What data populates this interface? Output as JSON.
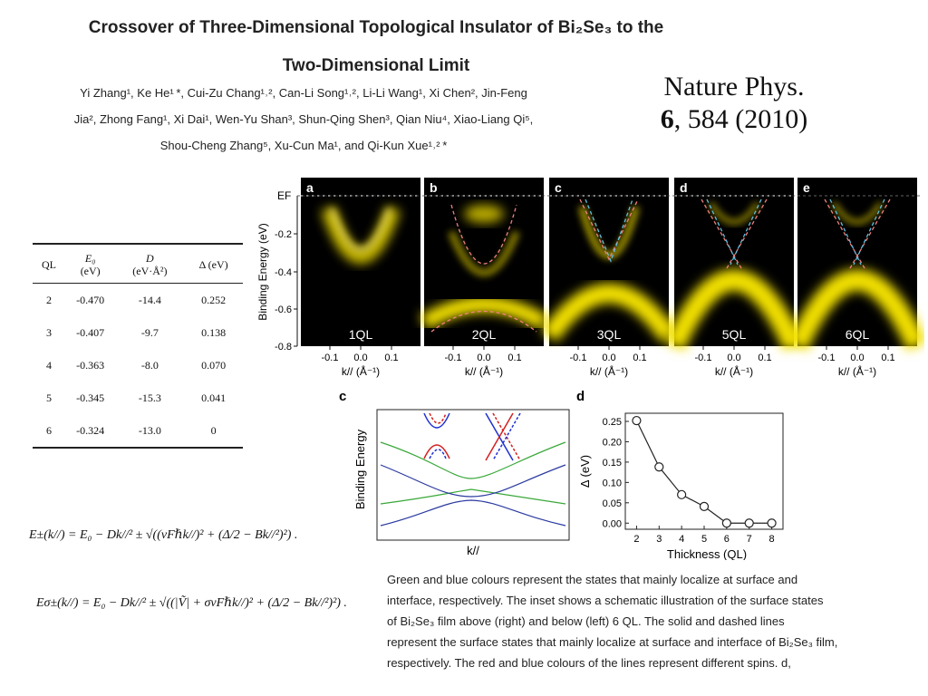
{
  "title": {
    "line1": "Crossover of Three-Dimensional Topological Insulator of Bi₂Se₃ to the",
    "line2": "Two-Dimensional Limit"
  },
  "authors": {
    "line1": "Yi Zhang¹, Ke He¹ *, Cui-Zu Chang¹˒², Can-Li Song¹˒², Li-Li Wang¹, Xi Chen², Jin-Feng",
    "line2": "Jia², Zhong Fang¹, Xi Dai¹, Wen-Yu Shan³, Shun-Qing Shen³, Qian Niu⁴, Xiao-Liang Qi⁵,",
    "line3": "Shou-Cheng Zhang⁵, Xu-Cun Ma¹, and Qi-Kun Xue¹˒² *"
  },
  "journal": {
    "name": "Nature Phys.",
    "volume": "6",
    "pages": ", 584 (2010)"
  },
  "table": {
    "headers": [
      "QL",
      "E₀",
      "D",
      "Δ (eV)"
    ],
    "units": [
      "",
      "(eV)",
      "(eV·Å²)",
      ""
    ],
    "rows": [
      [
        "2",
        "-0.470",
        "-14.4",
        "0.252"
      ],
      [
        "3",
        "-0.407",
        "-9.7",
        "0.138"
      ],
      [
        "4",
        "-0.363",
        "-8.0",
        "0.070"
      ],
      [
        "5",
        "-0.345",
        "-15.3",
        "0.041"
      ],
      [
        "6",
        "-0.324",
        "-13.0",
        "0"
      ]
    ]
  },
  "formulas": {
    "eq1": "E±(k//) = E₀ − Dk//² ± √((νFℏk//)² + (Δ/2 − Bk//²)²) .",
    "eq2": "Eσ±(k//) = E₀ − Dk//² ± √((|Ṽ| + σνFℏk//)² + (Δ/2 − Bk//²)²) ."
  },
  "arpes": {
    "ylabel": "Binding Energy (eV)",
    "ef_label": "EF",
    "yticks": [
      "-0.2",
      "-0.4",
      "-0.6",
      "-0.8"
    ],
    "xticks": [
      "-0.1",
      "0.0",
      "0.1"
    ],
    "xlabel": "k// (Å⁻¹)",
    "panels": [
      {
        "letter": "a",
        "label": "1QL"
      },
      {
        "letter": "b",
        "label": "2QL"
      },
      {
        "letter": "c",
        "label": "3QL"
      },
      {
        "letter": "d",
        "label": "5QL"
      },
      {
        "letter": "e",
        "label": "6QL"
      }
    ]
  },
  "schematic": {
    "letter": "c",
    "ylabel": "Binding Energy",
    "xlabel": "k//",
    "colors": {
      "surface": "#3aa83a",
      "interface": "#2b3aa0",
      "red": "#d42020",
      "blue": "#2030d0"
    }
  },
  "chart_data": {
    "type": "scatter",
    "panel_letter": "d",
    "x": [
      2,
      3,
      4,
      5,
      6,
      7,
      8
    ],
    "y": [
      0.252,
      0.138,
      0.07,
      0.041,
      0.0,
      0.0,
      0.0
    ],
    "xlabel": "Thickness (QL)",
    "ylabel": "Δ (eV)",
    "xlim": [
      1.5,
      8.5
    ],
    "ylim": [
      -0.015,
      0.27
    ],
    "xticks": [
      2,
      3,
      4,
      5,
      6,
      7,
      8
    ],
    "yticks": [
      "0.00",
      "0.05",
      "0.10",
      "0.15",
      "0.20",
      "0.25"
    ],
    "line_connected": true,
    "marker": "open-circle"
  },
  "caption": [
    "Green and blue colours represent the states that mainly localize at surface and",
    "interface, respectively. The inset shows a schematic illustration of the surface states",
    "of Bi₂Se₃ film above (right) and below (left) 6 QL. The solid and dashed lines",
    "represent the surface states that mainly localize at surface and interface of Bi₂Se₃ film,",
    "respectively. The red and blue colours of the lines represent different spins. d,"
  ]
}
